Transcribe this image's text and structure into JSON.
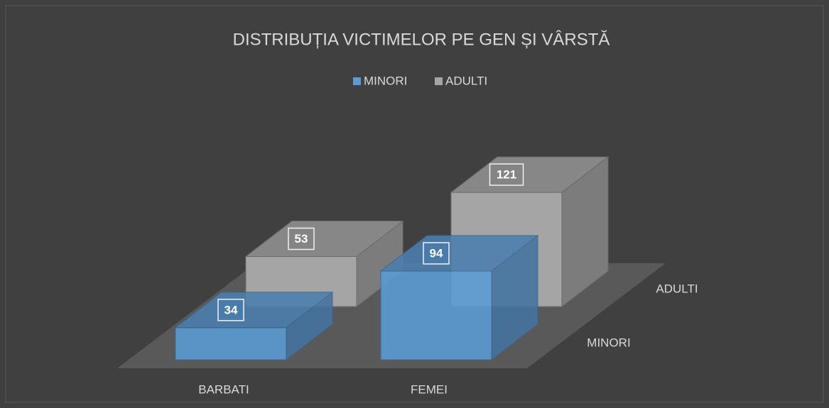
{
  "chart_data": {
    "type": "bar3d",
    "title": "DISTRIBUȚIA VICTIMELOR PE GEN ȘI VÂRSTĂ",
    "categories": [
      "BARBATI",
      "FEMEI"
    ],
    "series": [
      {
        "name": "MINORI",
        "color": "#5b9bd5",
        "values": [
          34,
          94
        ]
      },
      {
        "name": "ADULTI",
        "color": "#a5a5a5",
        "values": [
          53,
          121
        ]
      }
    ],
    "legend": "top"
  }
}
